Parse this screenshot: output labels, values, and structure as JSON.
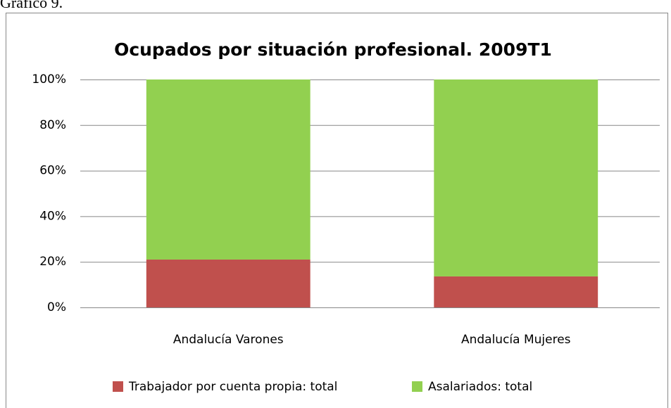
{
  "caption": "Gráfico 9.",
  "chart_data": {
    "type": "stacked-bar",
    "title": "Ocupados por situación profesional. 2009T1",
    "categories": [
      "Andalucía Varones",
      "Andalucía Mujeres"
    ],
    "series": [
      {
        "name": "Trabajador por cuenta propia: total",
        "color": "#c0504d",
        "values": [
          21.0,
          13.6
        ]
      },
      {
        "name": "Asalariados: total",
        "color": "#92d050",
        "values": [
          79.0,
          86.4
        ]
      }
    ],
    "ylim": [
      0,
      100
    ],
    "yticks": [
      {
        "value": 0,
        "label": "0%"
      },
      {
        "value": 20,
        "label": "20%"
      },
      {
        "value": 40,
        "label": "40%"
      },
      {
        "value": 60,
        "label": "60%"
      },
      {
        "value": 80,
        "label": "80%"
      },
      {
        "value": 100,
        "label": "100%"
      }
    ],
    "grid": true,
    "legend": "bottom"
  }
}
